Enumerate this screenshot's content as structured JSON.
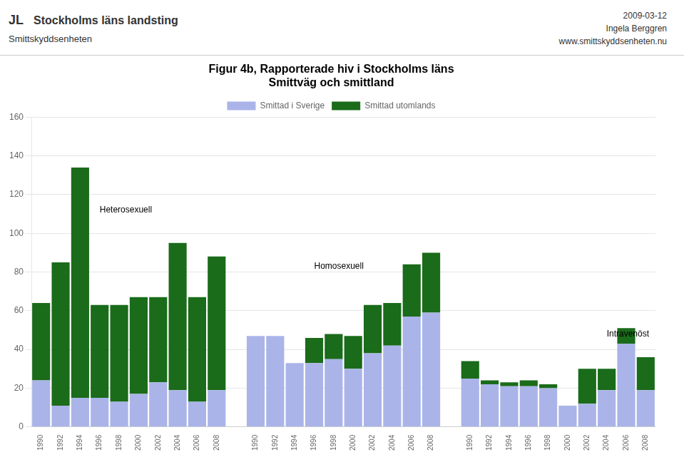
{
  "chart_data": {
    "type": "bar",
    "stacked": true,
    "title": [
      "Figur 4b, Rapporterade hiv i Stockholms läns",
      "Smittväg och smittland"
    ],
    "header": {
      "logo": "JL",
      "left": [
        "Stockholms läns landsting",
        "Smittskyddsenheten"
      ],
      "right": [
        "2009-03-12",
        "Ingela Berggren",
        "www.smittskyddsenheten.nu"
      ]
    },
    "categories": [
      "1990",
      "1992",
      "1994",
      "1996",
      "1998",
      "2000",
      "2002",
      "2004",
      "2006",
      "2008",
      null,
      "1990",
      "1992",
      "1994",
      "1996",
      "1998",
      "2000",
      "2002",
      "2004",
      "2006",
      "2008",
      null,
      "1990",
      "1992",
      "1994",
      "1996",
      "1998",
      "2000",
      "2002",
      "2004",
      "2006",
      "2008"
    ],
    "series": [
      {
        "name": "Smittad i Sverige",
        "color": "#aab4e8",
        "values": [
          24,
          11,
          15,
          15,
          13,
          17,
          23,
          19,
          13,
          19,
          null,
          47,
          47,
          33,
          33,
          35,
          30,
          38,
          42,
          57,
          59,
          null,
          25,
          22,
          21,
          21,
          20,
          11,
          12,
          19,
          43,
          19
        ]
      },
      {
        "name": "Smittad utomlands",
        "color": "#1a6b1a",
        "values": [
          40,
          74,
          119,
          48,
          50,
          50,
          44,
          76,
          54,
          69,
          null,
          0,
          0,
          0,
          13,
          13,
          17,
          25,
          22,
          27,
          31,
          null,
          9,
          2,
          2,
          3,
          2,
          0,
          18,
          11,
          8,
          17
        ]
      }
    ],
    "ylim": [
      0,
      160
    ],
    "yticks": [
      0,
      20,
      40,
      60,
      80,
      100,
      120,
      140,
      160
    ],
    "grid": true,
    "legend": "top",
    "annotations": [
      {
        "text": "Heterosexuell",
        "x": 3,
        "y": 112
      },
      {
        "text": "Homosexuell",
        "x": 14,
        "y": 83
      },
      {
        "text": "Intravenöst",
        "x": 29,
        "y": 48
      }
    ]
  }
}
